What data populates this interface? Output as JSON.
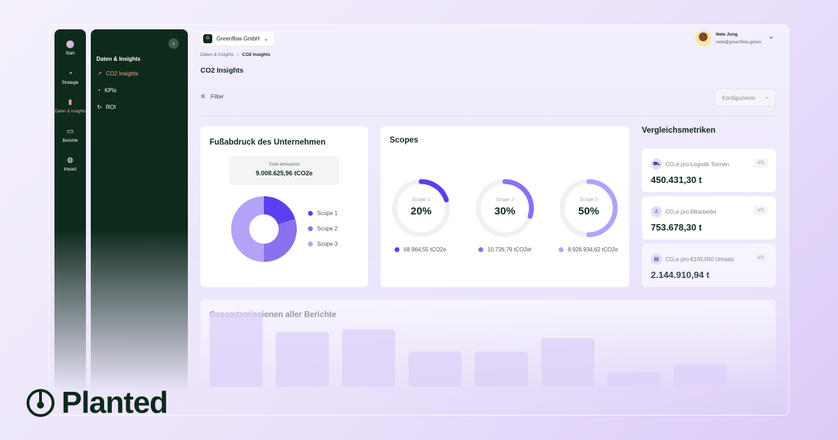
{
  "colors": {
    "scope1": "#5b3ff0",
    "scope2": "#8b70f0",
    "scope3": "#b3a2f6",
    "accent": "#f2a98a",
    "sidebar": "#0d2a1c"
  },
  "rail": [
    {
      "label": "Start",
      "icon": "avatar-icon"
    },
    {
      "label": "Strategie",
      "icon": "gauge-icon"
    },
    {
      "label": "Daten & Insights",
      "icon": "bar-chart-icon",
      "active": true
    },
    {
      "label": "Berichte",
      "icon": "folder-icon"
    },
    {
      "label": "Impact",
      "icon": "globe-icon"
    }
  ],
  "panel": {
    "title": "Daten & Insights",
    "items": [
      {
        "label": "CO2 Insights",
        "icon": "trend-icon",
        "active": true
      },
      {
        "label": "KPIs",
        "icon": "pie-icon"
      },
      {
        "label": "ROI",
        "icon": "refresh-icon"
      }
    ]
  },
  "header": {
    "org": "Greenflow GmbH",
    "user_name": "Nele Jung",
    "user_email": "nele@greenflow.green"
  },
  "breadcrumb": [
    "Daten & Insights",
    "CO2 Insights"
  ],
  "page_title": "CO2 Insights",
  "filter_label": "Filter",
  "configure_label": "Konfigurieren",
  "footprint": {
    "title": "Fußabdruck des Unternehmen",
    "total_label": "Total emissions",
    "total_value": "9.008.625,96 tCO2e",
    "legend": [
      "Scope 1",
      "Scope 2",
      "Scope 3"
    ]
  },
  "scopes": {
    "title": "Scopes",
    "items": [
      {
        "name": "Scope 1",
        "percent": 20,
        "label": "20%",
        "value": "68.964,55 tCO2e"
      },
      {
        "name": "Scope 2",
        "percent": 30,
        "label": "30%",
        "value": "10.726,79 tCO2et"
      },
      {
        "name": "Scope 3",
        "percent": 50,
        "label": "50%",
        "value": "8.928.934,62 tCO2e"
      }
    ]
  },
  "metrics": {
    "title": "Vergleichsmetriken",
    "items": [
      {
        "label": "CO₂e pro Logistik Tonnen",
        "badge": "4/5",
        "value": "450.431,30 t",
        "icon": "truck-icon"
      },
      {
        "label": "CO₂e pro Mitarbeiter",
        "badge": "4/5",
        "value": "753.678,30 t",
        "icon": "user-icon"
      },
      {
        "label": "CO₂e pro €100,000 Umsatz",
        "badge": "4/5",
        "value": "2.144.910,94 t",
        "icon": "document-icon"
      }
    ]
  },
  "chart_data": {
    "type": "bar",
    "title": "Gesamtemissionen aller Berichte",
    "values": [
      73,
      54,
      57,
      35,
      35,
      48,
      15,
      22
    ]
  },
  "brand": "Planted"
}
